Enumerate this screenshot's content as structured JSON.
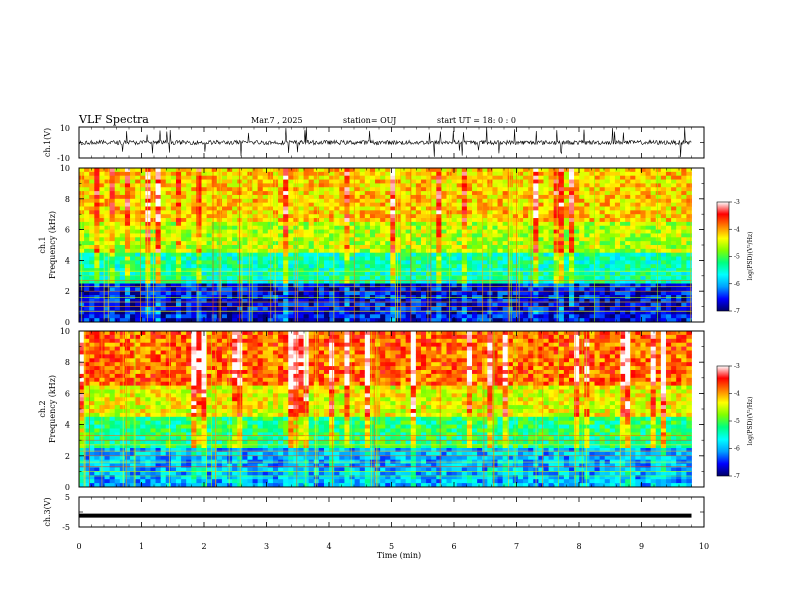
{
  "header": {
    "title": "VLF Spectra",
    "date": "Mar.7 , 2025",
    "station": "station= OUJ",
    "start": "start  UT =  18: 0  : 0"
  },
  "chart_data": [
    {
      "type": "line",
      "panel": "ch1-waveform",
      "ylabel": "ch.1(V)",
      "ylim": [
        -10,
        10
      ],
      "yticks": [
        "10",
        "-10"
      ],
      "baseline": 0,
      "amplitude_typical": 2,
      "spike_max": 10
    },
    {
      "type": "heatmap",
      "panel": "ch1-spectrogram",
      "ylabel_top": "ch.1",
      "ylabel": "Frequency  (kHz)",
      "ylim": [
        0,
        10
      ],
      "yticks": [
        "0",
        "2",
        "4",
        "6",
        "8",
        "10"
      ],
      "xlim": [
        0,
        10
      ],
      "data_end_min": 9.8,
      "bands": [
        {
          "freq_khz": [
            0,
            2.6
          ],
          "log_psd": -6.6
        },
        {
          "freq_khz": [
            2.6,
            4.5
          ],
          "log_psd": -5.4
        },
        {
          "freq_khz": [
            4.5,
            6.5
          ],
          "log_psd": -4.6
        },
        {
          "freq_khz": [
            6.5,
            10
          ],
          "log_psd": -4.2
        }
      ],
      "colorbar": {
        "label": "log(PSD)(V²/Hz)",
        "range": [
          -7,
          -3
        ],
        "ticks": [
          "-3",
          "-4",
          "-5",
          "-6",
          "-7"
        ]
      }
    },
    {
      "type": "heatmap",
      "panel": "ch2-spectrogram",
      "ylabel_top": "ch.2",
      "ylabel": "Frequency  (kHz)",
      "ylim": [
        0,
        10
      ],
      "yticks": [
        "0",
        "2",
        "4",
        "6",
        "8",
        "10"
      ],
      "xlim": [
        0,
        10
      ],
      "data_end_min": 9.8,
      "bands": [
        {
          "freq_khz": [
            0,
            2.4
          ],
          "log_psd": -6.0
        },
        {
          "freq_khz": [
            2.4,
            4.5
          ],
          "log_psd": -5.2
        },
        {
          "freq_khz": [
            4.5,
            6.5
          ],
          "log_psd": -4.4
        },
        {
          "freq_khz": [
            6.5,
            10
          ],
          "log_psd": -3.8
        }
      ],
      "colorbar": {
        "label": "log(PSD)(V²/Hz)",
        "range": [
          -7,
          -3
        ],
        "ticks": [
          "-3",
          "-4",
          "-5",
          "-6",
          "-7"
        ]
      }
    },
    {
      "type": "line",
      "panel": "ch3-waveform",
      "ylabel": "ch.3(V)",
      "ylim": [
        -5,
        5
      ],
      "yticks": [
        "5",
        "-5"
      ],
      "value": -1.2
    }
  ],
  "xaxis": {
    "label": "Time  (min)",
    "ticks": [
      "0",
      "1",
      "2",
      "3",
      "4",
      "5",
      "6",
      "7",
      "8",
      "9",
      "10"
    ],
    "xlim": [
      0,
      10
    ]
  },
  "colors": {
    "colormap": [
      "#000066",
      "#0000ff",
      "#00a0ff",
      "#00ffff",
      "#00ff80",
      "#80ff00",
      "#ffff00",
      "#ff8000",
      "#ff0000",
      "#ffffff"
    ],
    "line": "#000000"
  }
}
